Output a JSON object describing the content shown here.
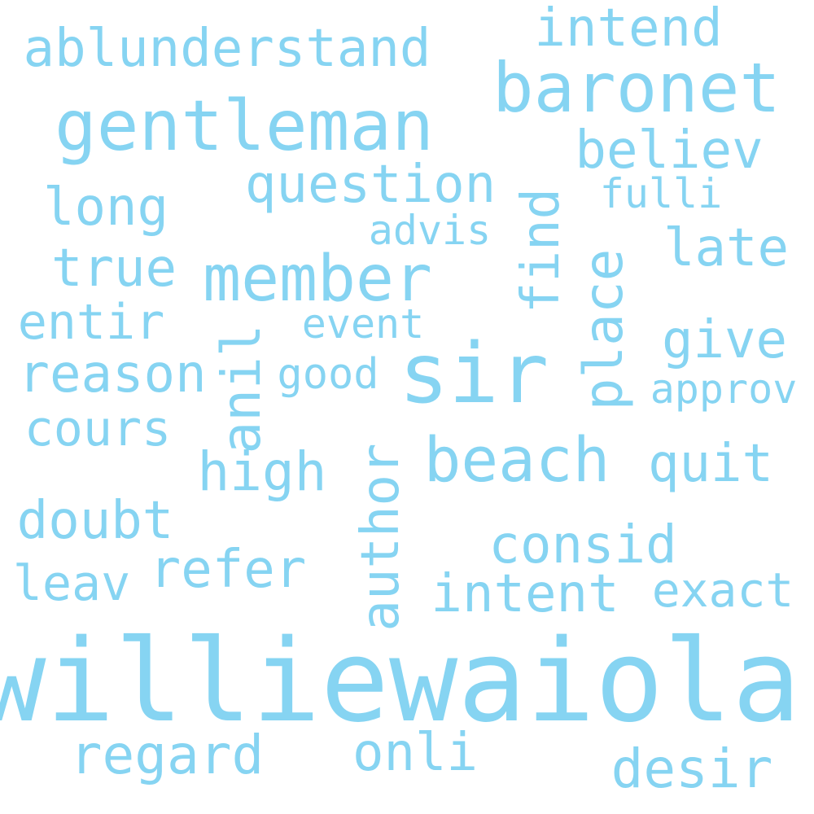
{
  "color": "#86d4f2",
  "words": [
    {
      "text": "williewaiola",
      "rotated": false
    },
    {
      "text": "sir",
      "rotated": false
    },
    {
      "text": "gentleman",
      "rotated": false
    },
    {
      "text": "baronet",
      "rotated": false
    },
    {
      "text": "member",
      "rotated": false
    },
    {
      "text": "beach",
      "rotated": false
    },
    {
      "text": "ablunderstand",
      "rotated": false
    },
    {
      "text": "question",
      "rotated": false
    },
    {
      "text": "intend",
      "rotated": false
    },
    {
      "text": "believ",
      "rotated": false
    },
    {
      "text": "long",
      "rotated": false
    },
    {
      "text": "fulli",
      "rotated": false
    },
    {
      "text": "advis",
      "rotated": false
    },
    {
      "text": "late",
      "rotated": false
    },
    {
      "text": "true",
      "rotated": false
    },
    {
      "text": "entir",
      "rotated": false
    },
    {
      "text": "event",
      "rotated": false
    },
    {
      "text": "give",
      "rotated": false
    },
    {
      "text": "reason",
      "rotated": false
    },
    {
      "text": "good",
      "rotated": false
    },
    {
      "text": "approv",
      "rotated": false
    },
    {
      "text": "cours",
      "rotated": false
    },
    {
      "text": "high",
      "rotated": false
    },
    {
      "text": "quit",
      "rotated": false
    },
    {
      "text": "doubt",
      "rotated": false
    },
    {
      "text": "consid",
      "rotated": false
    },
    {
      "text": "refer",
      "rotated": false
    },
    {
      "text": "leav",
      "rotated": false
    },
    {
      "text": "intent",
      "rotated": false
    },
    {
      "text": "exact",
      "rotated": false
    },
    {
      "text": "regard",
      "rotated": false
    },
    {
      "text": "onli",
      "rotated": false
    },
    {
      "text": "desir",
      "rotated": false
    },
    {
      "text": "find",
      "rotated": true
    },
    {
      "text": "place",
      "rotated": true
    },
    {
      "text": "anil",
      "rotated": true
    },
    {
      "text": "author",
      "rotated": true
    }
  ]
}
